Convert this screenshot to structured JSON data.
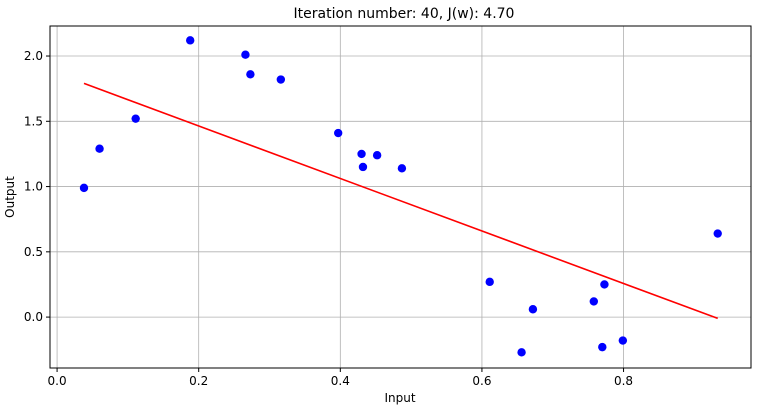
{
  "chart_data": {
    "type": "scatter",
    "title": "Iteration number: 40, J(w): 4.70",
    "xlabel": "Input",
    "ylabel": "Output",
    "xlim": [
      -0.01,
      0.98
    ],
    "ylim": [
      -0.39,
      2.23
    ],
    "x_ticks": [
      0.0,
      0.2,
      0.4,
      0.6,
      0.8
    ],
    "x_tick_labels": [
      "0.0",
      "0.2",
      "0.4",
      "0.6",
      "0.8"
    ],
    "y_ticks": [
      0.0,
      0.5,
      1.0,
      1.5,
      2.0
    ],
    "y_tick_labels": [
      "0.0",
      "0.5",
      "1.0",
      "1.5",
      "2.0"
    ],
    "grid": true,
    "points_color": "#0000ff",
    "line_color": "#ff0000",
    "points": [
      {
        "x": 0.038,
        "y": 0.99
      },
      {
        "x": 0.06,
        "y": 1.29
      },
      {
        "x": 0.111,
        "y": 1.52
      },
      {
        "x": 0.188,
        "y": 2.12
      },
      {
        "x": 0.266,
        "y": 2.01
      },
      {
        "x": 0.273,
        "y": 1.86
      },
      {
        "x": 0.316,
        "y": 1.82
      },
      {
        "x": 0.397,
        "y": 1.41
      },
      {
        "x": 0.43,
        "y": 1.25
      },
      {
        "x": 0.432,
        "y": 1.15
      },
      {
        "x": 0.452,
        "y": 1.24
      },
      {
        "x": 0.487,
        "y": 1.14
      },
      {
        "x": 0.611,
        "y": 0.27
      },
      {
        "x": 0.656,
        "y": -0.27
      },
      {
        "x": 0.672,
        "y": 0.06
      },
      {
        "x": 0.758,
        "y": 0.12
      },
      {
        "x": 0.77,
        "y": -0.23
      },
      {
        "x": 0.773,
        "y": 0.25
      },
      {
        "x": 0.799,
        "y": -0.18
      },
      {
        "x": 0.933,
        "y": 0.64
      }
    ],
    "fit_line": {
      "x": [
        0.038,
        0.933
      ],
      "y": [
        1.79,
        -0.01
      ]
    }
  }
}
